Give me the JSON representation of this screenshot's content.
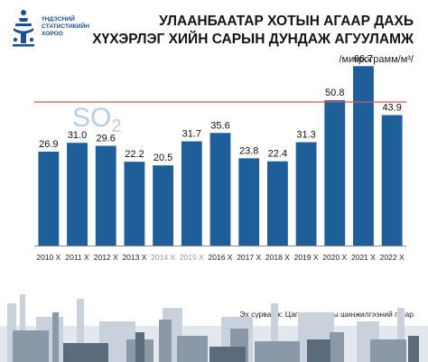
{
  "org": {
    "name_lines": [
      "ҮНДЭСНИЙ",
      "СТАТИСТИКИЙН",
      "ХОРОО"
    ]
  },
  "header": {
    "title_line1": "УЛААНБААТАР ХОТЫН АГААР ДАХЬ",
    "title_line2": "ХҮХЭРЛЭГ ХИЙН САРЫН ДУНДАЖ АГУУЛАМЖ",
    "unit": "/микрограмм/м³/"
  },
  "source": "Эх сурвалж: Цаг уур, орчны шинжилгээний газар",
  "colors": {
    "bar": "#1f5f99",
    "bar_dark": "#164a7a",
    "limit_line": "#d9534f",
    "so2_label": "#b7cde3",
    "logo": "#1d4f8f",
    "tick_gray": "#9a9a9a"
  },
  "chart_data": {
    "type": "bar",
    "categories": [
      "2010 X",
      "2011 X",
      "2012 X",
      "2013 X",
      "2014 X",
      "2015 X",
      "2016 X",
      "2017 X",
      "2018 X",
      "2019 X",
      "2020 X",
      "2021 X",
      "2022 X"
    ],
    "faded_categories": [
      "2014 X",
      "2015 X"
    ],
    "values": [
      26.9,
      31.0,
      29.6,
      22.2,
      20.5,
      31.7,
      35.6,
      23.8,
      22.4,
      31.3,
      50.8,
      66.7,
      43.9
    ],
    "value_labels": [
      "26.9",
      "31.0",
      "29.6",
      "22.2",
      "20.5",
      "31.7",
      "35.6",
      "23.8",
      "22.4",
      "31.3",
      "50.8",
      "66.7",
      "43.9"
    ],
    "annotation": {
      "text": "SO",
      "subscript": "2"
    },
    "reference_value": 50,
    "ylim": [
      0,
      75
    ],
    "title": "",
    "xlabel": "",
    "ylabel": ""
  }
}
